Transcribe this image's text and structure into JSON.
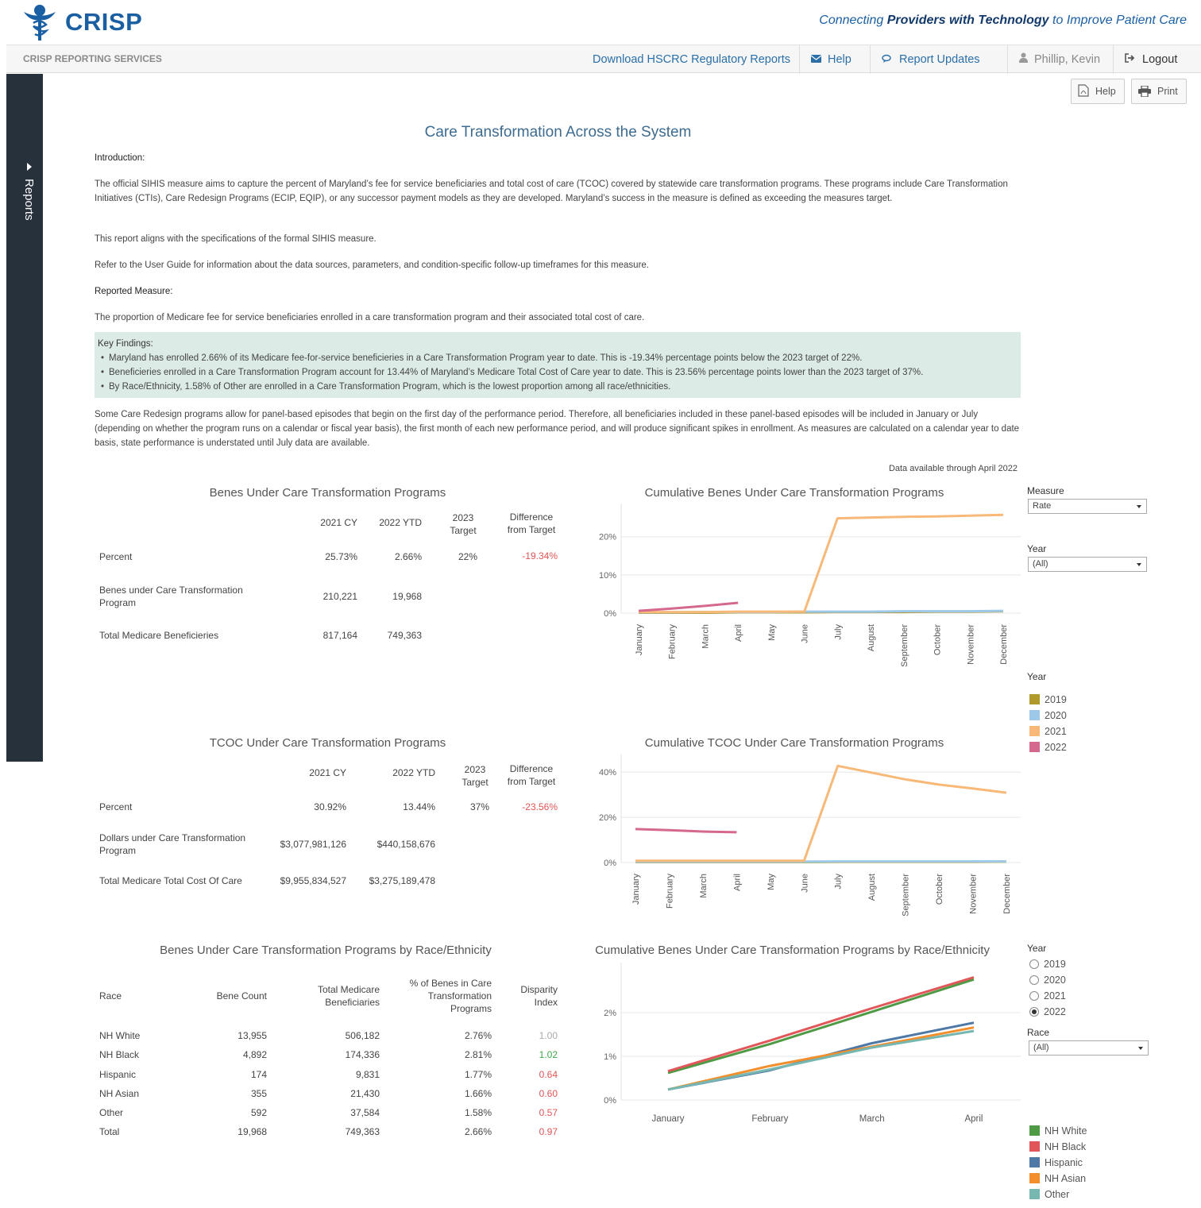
{
  "header": {
    "logo_text": "CRISP",
    "tagline_pre": "Connecting ",
    "tagline_bold1": "Providers with Technology",
    "tagline_post": " to Improve Patient Care"
  },
  "nav": {
    "brand": "CRISP REPORTING SERVICES",
    "download": "Download HSCRC Regulatory Reports",
    "help": "Help",
    "updates": "Report Updates",
    "user": "Phillip, Kevin",
    "logout": "Logout"
  },
  "sidebar": {
    "label": "Reports"
  },
  "toolbar": {
    "help": "Help",
    "print": "Print"
  },
  "page": {
    "title": "Care Transformation Across the System",
    "intro_heading": "Introduction:",
    "intro_p1": "The official SIHIS measure aims to capture the percent of Maryland’s fee for service beneficiaries and total cost of care (TCOC) covered by statewide care transformation programs. These programs include Care Transformation Initiatives (CTIs), Care Redesign Programs (ECIP, EQIP), or any successor payment models as they are developed. Maryland’s success in the measure is defined as exceeding the measures target.",
    "intro_p2": "This report aligns with the specifications of the formal SIHIS measure.",
    "intro_p3": "Refer to the User Guide for information about the data sources, parameters, and condition-specific follow-up timeframes for this measure.",
    "measure_heading": "Reported Measure:",
    "measure_text": "The proportion of Medicare fee for service beneficiaries enrolled in a care transformation program and their associated total cost of care.",
    "findings_heading": "Key Findings:",
    "findings": [
      "Maryland has enrolled 2.66% of its Medicare fee-for-service beneficieries in a Care Transformation Program year to date. This is -19.34% percentage points below the 2023 target of 22%.",
      "Beneficieries enrolled in a Care Transformation Program account for 13.44% of Maryland’s Medicare Total Cost of Care year to date. This is 23.56% percentage points lower than the 2023 target of 37%.",
      "By Race/Ethnicity, 1.58%  of Other  are enrolled in a Care Transformation Program, which is the lowest proportion among all race/ethnicities."
    ],
    "note": "Some Care Redesign programs allow for panel-based episodes that begin on the first day of the performance period. Therefore, all beneficiaries included in these panel-based episodes will be included in January or July (depending on whether the program runs on a calendar or fiscal year basis), the first month of each new performance period, and will produce significant spikes in enrollment. As measures are calculated on a calendar year to date basis, state performance is understated until July data are available.",
    "data_available": "Data available through April 2022"
  },
  "benes_table": {
    "title": "Benes Under Care Transformation Programs",
    "headers": [
      "2021 CY",
      "2022 YTD",
      "2023 Target",
      "Difference from Target"
    ],
    "rows": [
      {
        "label": "Percent",
        "cy": "25.73%",
        "ytd": "2.66%",
        "target": "22%",
        "diff": "-19.34%"
      },
      {
        "label": "Benes under Care Transformation Program",
        "cy": "210,221",
        "ytd": "19,968",
        "target": "",
        "diff": ""
      },
      {
        "label": "Total Medicare Beneficieries",
        "cy": "817,164",
        "ytd": "749,363",
        "target": "",
        "diff": ""
      }
    ]
  },
  "tcoc_table": {
    "title": "TCOC Under Care Transformation Programs",
    "headers": [
      "2021 CY",
      "2022  YTD",
      "2023 Target",
      "Difference from Target"
    ],
    "rows": [
      {
        "label": "Percent",
        "cy": "30.92%",
        "ytd": "13.44%",
        "target": "37%",
        "diff": "-23.56%"
      },
      {
        "label": "Dollars under Care Transformation Program",
        "cy": "$3,077,981,126",
        "ytd": "$440,158,676",
        "target": "",
        "diff": ""
      },
      {
        "label": "Total Medicare Total Cost Of Care",
        "cy": "$9,955,834,527",
        "ytd": "$3,275,189,478",
        "target": "",
        "diff": ""
      }
    ]
  },
  "race_table": {
    "title": "Benes Under Care Transformation Programs by Race/Ethnicity",
    "headers": [
      "Race",
      "Bene Count",
      "Total Medicare Beneficiaries",
      "% of Benes in Care Transformation Programs",
      "Disparity Index"
    ],
    "rows": [
      {
        "race": "NH White",
        "count": "13,955",
        "total": "506,182",
        "pct": "2.76%",
        "index": "1.00",
        "tone": "muted"
      },
      {
        "race": "NH Black",
        "count": "4,892",
        "total": "174,336",
        "pct": "2.81%",
        "index": "1.02",
        "tone": "pos"
      },
      {
        "race": "Hispanic",
        "count": "174",
        "total": "9,831",
        "pct": "1.77%",
        "index": "0.64",
        "tone": "neg"
      },
      {
        "race": "NH Asian",
        "count": "355",
        "total": "21,430",
        "pct": "1.66%",
        "index": "0.60",
        "tone": "neg"
      },
      {
        "race": "Other",
        "count": "592",
        "total": "37,584",
        "pct": "1.58%",
        "index": "0.57",
        "tone": "neg"
      },
      {
        "race": "Total",
        "count": "19,968",
        "total": "749,363",
        "pct": "2.66%",
        "index": "0.97",
        "tone": "neg"
      }
    ]
  },
  "controls": {
    "measure_label": "Measure",
    "measure_value": "Rate",
    "year_label": "Year",
    "year_value": "(All)",
    "legend_title": "Year",
    "years_legend": [
      {
        "label": "2019",
        "color": "#b19a2c"
      },
      {
        "label": "2020",
        "color": "#9dc8e8"
      },
      {
        "label": "2021",
        "color": "#f8b978"
      },
      {
        "label": "2022",
        "color": "#d4688e"
      }
    ],
    "race_year_label": "Year",
    "race_years": [
      {
        "label": "2019",
        "selected": false
      },
      {
        "label": "2020",
        "selected": false
      },
      {
        "label": "2021",
        "selected": false
      },
      {
        "label": "2022",
        "selected": true
      }
    ],
    "race_label": "Race",
    "race_value": "(All)",
    "race_legend": [
      {
        "label": "NH White",
        "color": "#4e9a45"
      },
      {
        "label": "NH Black",
        "color": "#e15759"
      },
      {
        "label": "Hispanic",
        "color": "#4e79a7"
      },
      {
        "label": "NH Asian",
        "color": "#f28e2b"
      },
      {
        "label": "Other",
        "color": "#76b7b2"
      }
    ]
  },
  "chart_data": [
    {
      "type": "line",
      "title": "Cumulative Benes Under Care Transformation Programs",
      "categories": [
        "January",
        "February",
        "March",
        "April",
        "May",
        "June",
        "July",
        "August",
        "September",
        "October",
        "November",
        "December"
      ],
      "ylim": [
        0,
        27
      ],
      "yticks": [
        0,
        10,
        20
      ],
      "ytick_labels": [
        "0%",
        "10%",
        "20%"
      ],
      "series": [
        {
          "name": "2019",
          "color": "#b19a2c",
          "values": [
            0.1,
            0.1,
            0.1,
            0.2,
            0.2,
            0.2,
            0.3,
            0.3,
            0.3,
            0.4,
            0.4,
            0.5
          ]
        },
        {
          "name": "2020",
          "color": "#9dc8e8",
          "values": [
            0.2,
            0.2,
            0.3,
            0.3,
            0.3,
            0.4,
            0.4,
            0.4,
            0.5,
            0.5,
            0.5,
            0.6
          ]
        },
        {
          "name": "2021",
          "color": "#f8b978",
          "values": [
            0.3,
            0.3,
            0.3,
            0.4,
            0.4,
            0.4,
            24.8,
            25.0,
            25.2,
            25.3,
            25.5,
            25.7
          ]
        },
        {
          "name": "2022",
          "color": "#d4688e",
          "values": [
            0.6,
            1.2,
            1.9,
            2.7,
            null,
            null,
            null,
            null,
            null,
            null,
            null,
            null
          ]
        }
      ]
    },
    {
      "type": "line",
      "title": "Cumulative TCOC Under Care Transformation Programs",
      "categories": [
        "January",
        "February",
        "March",
        "April",
        "May",
        "June",
        "July",
        "August",
        "September",
        "October",
        "November",
        "December"
      ],
      "ylim": [
        0,
        45
      ],
      "yticks": [
        0,
        20,
        40
      ],
      "ytick_labels": [
        "0%",
        "20%",
        "40%"
      ],
      "series": [
        {
          "name": "2019",
          "color": "#b19a2c",
          "values": [
            0.2,
            0.2,
            0.2,
            0.2,
            0.2,
            0.2,
            0.3,
            0.3,
            0.3,
            0.3,
            0.3,
            0.4
          ]
        },
        {
          "name": "2020",
          "color": "#9dc8e8",
          "values": [
            0.4,
            0.4,
            0.4,
            0.4,
            0.4,
            0.4,
            0.5,
            0.5,
            0.5,
            0.5,
            0.5,
            0.5
          ]
        },
        {
          "name": "2021",
          "color": "#f8b978",
          "values": [
            0.8,
            0.8,
            0.8,
            0.8,
            0.8,
            0.8,
            42.8,
            39.8,
            36.8,
            34.5,
            32.8,
            30.9
          ]
        },
        {
          "name": "2022",
          "color": "#d4688e",
          "values": [
            14.8,
            14.3,
            13.7,
            13.4,
            null,
            null,
            null,
            null,
            null,
            null,
            null,
            null
          ]
        }
      ]
    },
    {
      "type": "line",
      "title": "Cumulative Benes Under Care Transformation Programs by Race/Ethnicity",
      "categories": [
        "January",
        "February",
        "March",
        "April"
      ],
      "ylim": [
        0,
        3
      ],
      "yticks": [
        0,
        1,
        2
      ],
      "ytick_labels": [
        "0%",
        "1%",
        "2%"
      ],
      "series": [
        {
          "name": "NH White",
          "color": "#4e9a45",
          "values": [
            0.62,
            1.28,
            2.02,
            2.76
          ]
        },
        {
          "name": "NH Black",
          "color": "#e15759",
          "values": [
            0.66,
            1.36,
            2.1,
            2.81
          ]
        },
        {
          "name": "Hispanic",
          "color": "#4e79a7",
          "values": [
            0.24,
            0.68,
            1.3,
            1.77
          ]
        },
        {
          "name": "NH Asian",
          "color": "#f28e2b",
          "values": [
            0.24,
            0.78,
            1.22,
            1.66
          ]
        },
        {
          "name": "Other",
          "color": "#76b7b2",
          "values": [
            0.24,
            0.7,
            1.2,
            1.58
          ]
        }
      ]
    }
  ]
}
